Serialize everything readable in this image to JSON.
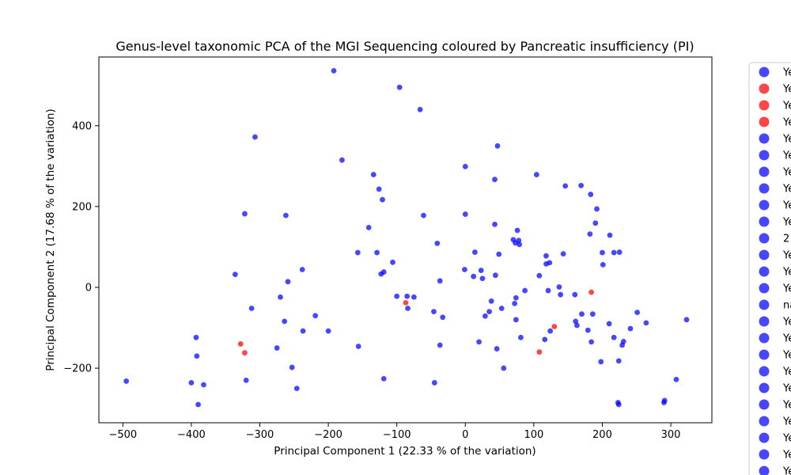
{
  "chart_data": {
    "type": "scatter",
    "title": "Genus-level taxonomic PCA of the MGI Sequencing coloured by Pancreatic insufficiency (PI)",
    "xlabel": "Principal Component 1 (22.33 % of the variation)",
    "ylabel": "Principal Component 2 (17.68 % of the variation)",
    "xlim": [
      -535,
      360
    ],
    "ylim": [
      -335,
      570
    ],
    "xticks": [
      -500,
      -400,
      -300,
      -200,
      -100,
      0,
      100,
      200,
      300
    ],
    "yticks": [
      -200,
      0,
      200,
      400
    ],
    "grid": false,
    "legend_placement": "right, outside plot area (clipped)",
    "colors": {
      "blue": "#0000ff",
      "red": "#ff0000"
    },
    "legend": [
      {
        "label": "Ye",
        "color": "#0000ff"
      },
      {
        "label": "Ye",
        "color": "#ff0000"
      },
      {
        "label": "Ye",
        "color": "#ff0000"
      },
      {
        "label": "Ye",
        "color": "#ff0000"
      },
      {
        "label": "Ye",
        "color": "#0000ff"
      },
      {
        "label": "Ye",
        "color": "#0000ff"
      },
      {
        "label": "Ye",
        "color": "#0000ff"
      },
      {
        "label": "Ye",
        "color": "#0000ff"
      },
      {
        "label": "Ye",
        "color": "#0000ff"
      },
      {
        "label": "Ye",
        "color": "#0000ff"
      },
      {
        "label": "2",
        "color": "#0000ff"
      },
      {
        "label": "Ye",
        "color": "#0000ff"
      },
      {
        "label": "Ye",
        "color": "#0000ff"
      },
      {
        "label": "Ye",
        "color": "#0000ff"
      },
      {
        "label": "na",
        "color": "#0000ff"
      },
      {
        "label": "Ye",
        "color": "#0000ff"
      },
      {
        "label": "Ye",
        "color": "#0000ff"
      },
      {
        "label": "Ye",
        "color": "#0000ff"
      },
      {
        "label": "Ye",
        "color": "#0000ff"
      },
      {
        "label": "Ye",
        "color": "#0000ff"
      },
      {
        "label": "Ye",
        "color": "#0000ff"
      },
      {
        "label": "Ye",
        "color": "#0000ff"
      },
      {
        "label": "Ye",
        "color": "#0000ff"
      },
      {
        "label": "Ye",
        "color": "#0000ff"
      },
      {
        "label": "Ye",
        "color": "#0000ff"
      }
    ],
    "series": [
      {
        "color": "#0000ff",
        "points": [
          [
            -495,
            -232
          ],
          [
            -400,
            -236
          ],
          [
            -393,
            -124
          ],
          [
            -392,
            -170
          ],
          [
            -390,
            -290
          ],
          [
            -382,
            -241
          ],
          [
            -336,
            32
          ],
          [
            -322,
            182
          ],
          [
            -320,
            -230
          ],
          [
            -312,
            -52
          ],
          [
            -307,
            372
          ],
          [
            -275,
            -150
          ],
          [
            -270,
            -24
          ],
          [
            -264,
            -84
          ],
          [
            -262,
            178
          ],
          [
            -259,
            14
          ],
          [
            -253,
            -198
          ],
          [
            -246,
            -250
          ],
          [
            -238,
            44
          ],
          [
            -237,
            -108
          ],
          [
            -219,
            -70
          ],
          [
            -200,
            -108
          ],
          [
            -192,
            536
          ],
          [
            -180,
            315
          ],
          [
            -157,
            86
          ],
          [
            -156,
            -146
          ],
          [
            -141,
            148
          ],
          [
            -134,
            279
          ],
          [
            -129,
            86
          ],
          [
            -126,
            243
          ],
          [
            -123,
            33
          ],
          [
            -121,
            217
          ],
          [
            -119,
            38
          ],
          [
            -119,
            -226
          ],
          [
            -106,
            62
          ],
          [
            -100,
            -22
          ],
          [
            -96,
            495
          ],
          [
            -85,
            -22
          ],
          [
            -84,
            -52
          ],
          [
            -75,
            -24
          ],
          [
            -66,
            440
          ],
          [
            -61,
            178
          ],
          [
            -46,
            -60
          ],
          [
            -45,
            -236
          ],
          [
            -41,
            109
          ],
          [
            -37,
            16
          ],
          [
            -37,
            -143
          ],
          [
            -33,
            -74
          ],
          [
            -1,
            44
          ],
          [
            0,
            299
          ],
          [
            0,
            181
          ],
          [
            12,
            27
          ],
          [
            14,
            87
          ],
          [
            20,
            -135
          ],
          [
            23,
            42
          ],
          [
            25,
            22
          ],
          [
            29,
            -71
          ],
          [
            35,
            -60
          ],
          [
            38,
            -34
          ],
          [
            43,
            156
          ],
          [
            43,
            267
          ],
          [
            44,
            30
          ],
          [
            46,
            -152
          ],
          [
            47,
            350
          ],
          [
            49,
            82
          ],
          [
            53,
            -52
          ],
          [
            56,
            -200
          ],
          [
            70,
            118
          ],
          [
            72,
            -40
          ],
          [
            73,
            110
          ],
          [
            74,
            -26
          ],
          [
            74,
            -80
          ],
          [
            76,
            141
          ],
          [
            78,
            116
          ],
          [
            79,
            106
          ],
          [
            81,
            -124
          ],
          [
            87,
            -8
          ],
          [
            104,
            279
          ],
          [
            108,
            29
          ],
          [
            116,
            -129
          ],
          [
            118,
            78
          ],
          [
            118,
            58
          ],
          [
            121,
            -8
          ],
          [
            123,
            61
          ],
          [
            124,
            -108
          ],
          [
            137,
            1
          ],
          [
            139,
            -18
          ],
          [
            143,
            83
          ],
          [
            146,
            251
          ],
          [
            160,
            -18
          ],
          [
            161,
            -84
          ],
          [
            163,
            -94
          ],
          [
            169,
            252
          ],
          [
            170,
            -66
          ],
          [
            179,
            -106
          ],
          [
            182,
            132
          ],
          [
            183,
            230
          ],
          [
            184,
            -135
          ],
          [
            186,
            -66
          ],
          [
            190,
            159
          ],
          [
            192,
            194
          ],
          [
            198,
            -184
          ],
          [
            200,
            86
          ],
          [
            201,
            56
          ],
          [
            210,
            -90
          ],
          [
            211,
            129
          ],
          [
            217,
            -124
          ],
          [
            217,
            86
          ],
          [
            223,
            -285
          ],
          [
            224,
            -290
          ],
          [
            224,
            -182
          ],
          [
            225,
            87
          ],
          [
            229,
            -143
          ],
          [
            231,
            -134
          ],
          [
            241,
            -102
          ],
          [
            251,
            -62
          ],
          [
            264,
            -88
          ],
          [
            290,
            -285
          ],
          [
            291,
            -280
          ],
          [
            308,
            -228
          ],
          [
            323,
            -80
          ]
        ]
      },
      {
        "color": "#ff0000",
        "points": [
          [
            -328,
            -140
          ],
          [
            -322,
            -162
          ],
          [
            -87,
            -38
          ],
          [
            108,
            -160
          ],
          [
            130,
            -97
          ],
          [
            184,
            -12
          ]
        ]
      }
    ]
  }
}
